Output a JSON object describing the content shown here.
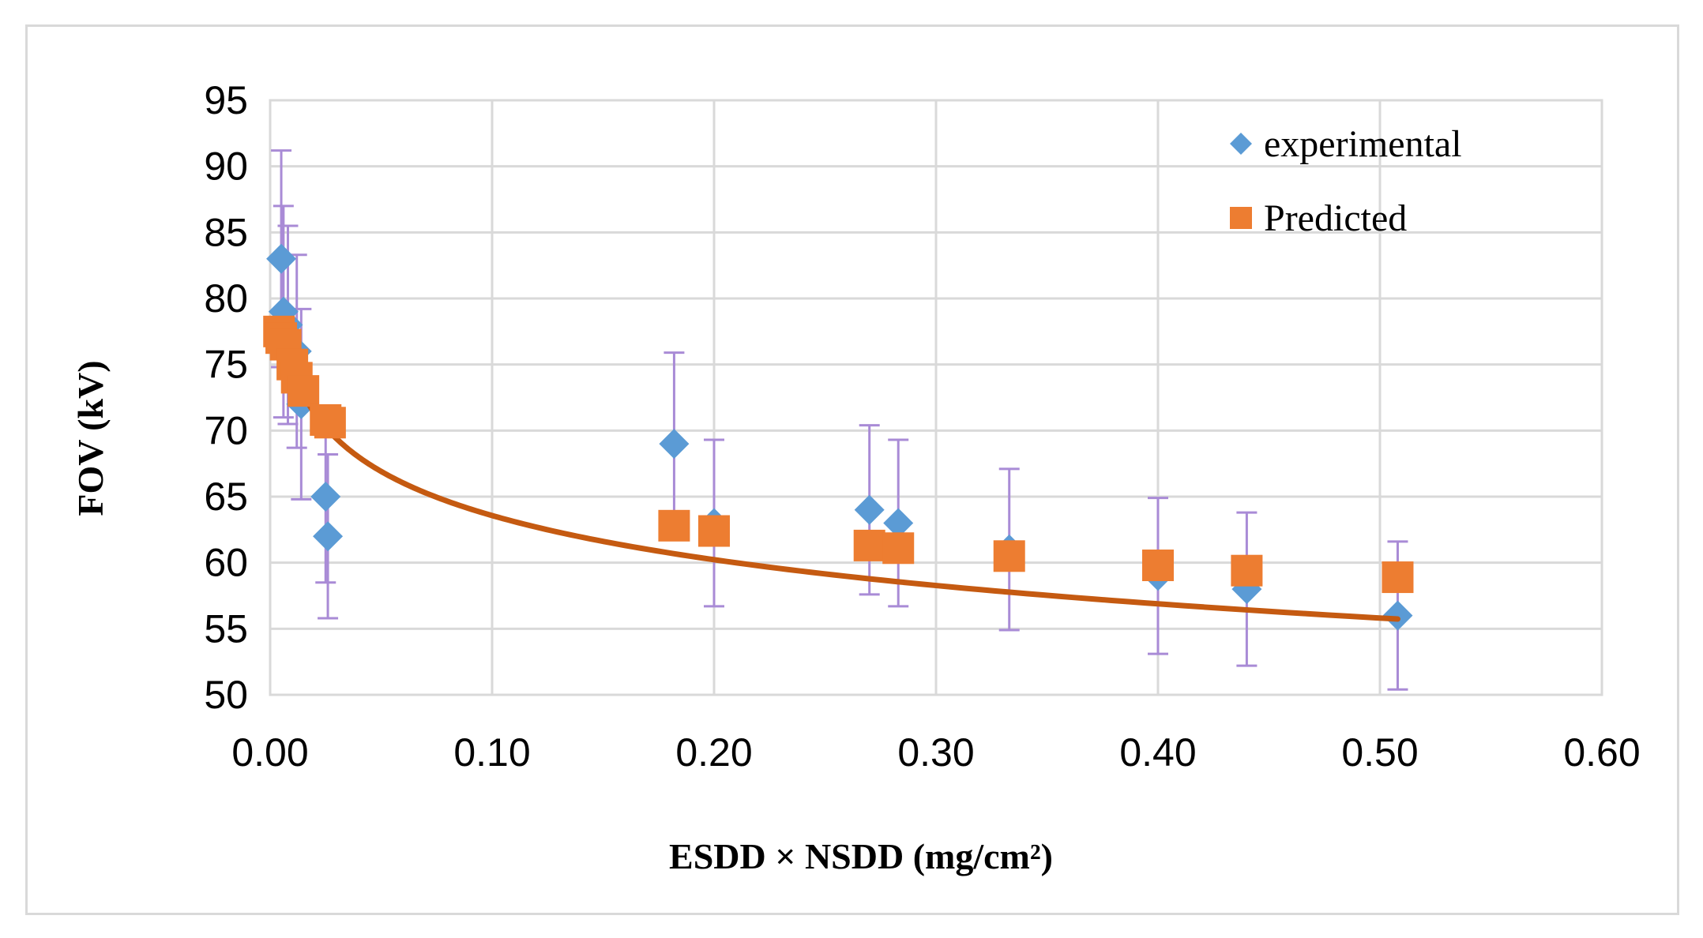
{
  "chart_data": {
    "type": "scatter",
    "title": "",
    "xlabel": "ESDD × NSDD (mg/cm²)",
    "ylabel": "FOV (kV)",
    "xlim": [
      0,
      0.6
    ],
    "ylim": [
      50,
      95
    ],
    "x_ticks": [
      "0.00",
      "0.10",
      "0.20",
      "0.30",
      "0.40",
      "0.50",
      "0.60"
    ],
    "y_ticks": [
      "50",
      "55",
      "60",
      "65",
      "70",
      "75",
      "80",
      "85",
      "90",
      "95"
    ],
    "grid": true,
    "legend_position": "top-right",
    "series": [
      {
        "name": "experimental",
        "marker": "diamond",
        "color": "#5b9bd5",
        "error_bar_color": "#a98bd6",
        "points": [
          {
            "x": 0.005,
            "y": 83,
            "err": 8.2
          },
          {
            "x": 0.006,
            "y": 79,
            "err": 8
          },
          {
            "x": 0.008,
            "y": 78,
            "err": 7.5
          },
          {
            "x": 0.012,
            "y": 76,
            "err": 7.3
          },
          {
            "x": 0.014,
            "y": 72,
            "err": 7.2
          },
          {
            "x": 0.025,
            "y": 65,
            "err": 6.5
          },
          {
            "x": 0.026,
            "y": 62,
            "err": 6.2
          },
          {
            "x": 0.182,
            "y": 69,
            "err": 6.9
          },
          {
            "x": 0.2,
            "y": 63,
            "err": 6.3
          },
          {
            "x": 0.27,
            "y": 64,
            "err": 6.4
          },
          {
            "x": 0.283,
            "y": 63,
            "err": 6.3
          },
          {
            "x": 0.333,
            "y": 61,
            "err": 6.1
          },
          {
            "x": 0.4,
            "y": 59,
            "err": 5.9
          },
          {
            "x": 0.44,
            "y": 58,
            "err": 5.8
          },
          {
            "x": 0.508,
            "y": 56,
            "err": 5.6
          }
        ]
      },
      {
        "name": "Predicted",
        "marker": "square",
        "color": "#ed7d31",
        "points": [
          {
            "x": 0.004,
            "y": 77.5
          },
          {
            "x": 0.005,
            "y": 77.0
          },
          {
            "x": 0.007,
            "y": 76.5
          },
          {
            "x": 0.01,
            "y": 75.0
          },
          {
            "x": 0.012,
            "y": 74.0
          },
          {
            "x": 0.015,
            "y": 73.0
          },
          {
            "x": 0.025,
            "y": 70.8
          },
          {
            "x": 0.027,
            "y": 70.6
          },
          {
            "x": 0.182,
            "y": 62.8
          },
          {
            "x": 0.2,
            "y": 62.4
          },
          {
            "x": 0.27,
            "y": 61.3
          },
          {
            "x": 0.283,
            "y": 61.1
          },
          {
            "x": 0.333,
            "y": 60.5
          },
          {
            "x": 0.4,
            "y": 59.8
          },
          {
            "x": 0.44,
            "y": 59.4
          },
          {
            "x": 0.508,
            "y": 58.9
          }
        ]
      }
    ],
    "trendline": {
      "type": "logarithmic",
      "color": "#c55a11",
      "a": 52.47,
      "b": -4.82,
      "x_range": [
        0.005,
        0.508
      ]
    }
  }
}
